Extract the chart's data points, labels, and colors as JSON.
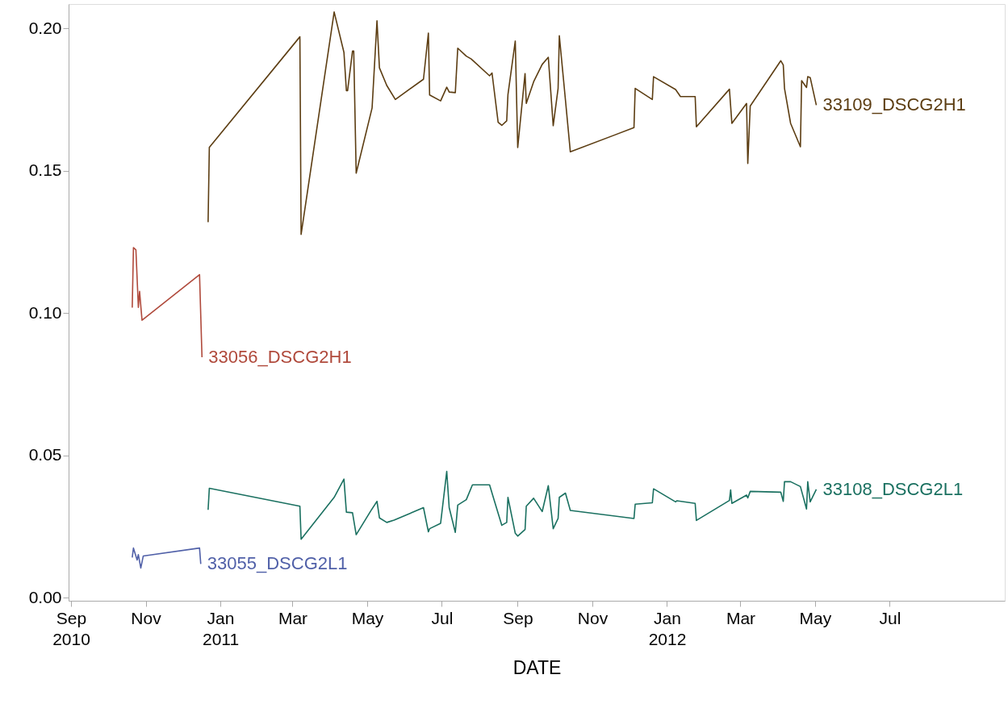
{
  "chart_data": {
    "type": "line",
    "xlabel": "DATE",
    "xlim": [
      "2010-08-30",
      "2012-10-03"
    ],
    "ylim": [
      -0.001,
      0.2085
    ],
    "xticks": [
      {
        "value": "2010-09-01",
        "label": "Sep 2010"
      },
      {
        "value": "2010-11-01",
        "label": "Nov"
      },
      {
        "value": "2011-01-01",
        "label": "Jan 2011"
      },
      {
        "value": "2011-03-01",
        "label": "Mar"
      },
      {
        "value": "2011-05-01",
        "label": "May"
      },
      {
        "value": "2011-07-01",
        "label": "Jul"
      },
      {
        "value": "2011-09-01",
        "label": "Sep"
      },
      {
        "value": "2011-11-01",
        "label": "Nov"
      },
      {
        "value": "2012-01-01",
        "label": "Jan 2012"
      },
      {
        "value": "2012-03-01",
        "label": "Mar"
      },
      {
        "value": "2012-05-01",
        "label": "May"
      },
      {
        "value": "2012-07-01",
        "label": "Jul"
      }
    ],
    "yticks": [
      {
        "value": 0,
        "label": "0.00"
      },
      {
        "value": 0.05,
        "label": "0.05"
      },
      {
        "value": 0.1,
        "label": "0.10"
      },
      {
        "value": 0.15,
        "label": "0.15"
      },
      {
        "value": 0.2,
        "label": "0.20"
      }
    ],
    "grid": false,
    "marker": "none",
    "line_style": "solid",
    "series": [
      {
        "name": "33056_DSCG2H1",
        "color": "#b04a3c",
        "x": [
          "2010-10-21",
          "2010-10-22",
          "2010-10-24",
          "2010-10-26",
          "2010-10-27",
          "2010-10-29",
          "2010-12-15",
          "2010-12-17"
        ],
        "values": [
          0.1019,
          0.123,
          0.1222,
          0.102,
          0.1076,
          0.0975,
          0.1135,
          0.0845
        ]
      },
      {
        "name": "33055_DSCG2L1",
        "color": "#5060a8",
        "x": [
          "2010-10-21",
          "2010-10-22",
          "2010-10-25",
          "2010-10-26",
          "2010-10-28",
          "2010-10-30",
          "2010-12-15",
          "2010-12-16"
        ],
        "values": [
          0.0142,
          0.0175,
          0.0133,
          0.0152,
          0.0105,
          0.0147,
          0.0175,
          0.0119
        ]
      },
      {
        "name": "33109_DSCG2H1",
        "color": "#5c3d12",
        "x": [
          "2010-12-22",
          "2010-12-23",
          "2011-03-07",
          "2011-03-08",
          "2011-04-04",
          "2011-04-12",
          "2011-04-14",
          "2011-04-15",
          "2011-04-19",
          "2011-04-20",
          "2011-04-22",
          "2011-05-05",
          "2011-05-09",
          "2011-05-11",
          "2011-05-17",
          "2011-05-24",
          "2011-06-16",
          "2011-06-20",
          "2011-06-21",
          "2011-06-30",
          "2011-07-05",
          "2011-07-07",
          "2011-07-12",
          "2011-07-14",
          "2011-07-21",
          "2011-07-25",
          "2011-08-09",
          "2011-08-11",
          "2011-08-16",
          "2011-08-19",
          "2011-08-23",
          "2011-08-24",
          "2011-08-30",
          "2011-09-01",
          "2011-09-07",
          "2011-09-08",
          "2011-09-14",
          "2011-09-21",
          "2011-09-26",
          "2011-09-30",
          "2011-10-04",
          "2011-10-05",
          "2011-10-10",
          "2011-10-14",
          "2011-12-05",
          "2011-12-06",
          "2011-12-20",
          "2011-12-21",
          "2012-01-08",
          "2012-01-12",
          "2012-01-24",
          "2012-01-25",
          "2012-02-21",
          "2012-02-23",
          "2012-03-06",
          "2012-03-07",
          "2012-03-09",
          "2012-04-03",
          "2012-04-05",
          "2012-04-06",
          "2012-04-11",
          "2012-04-19",
          "2012-04-20",
          "2012-04-24",
          "2012-04-25",
          "2012-04-27",
          "2012-05-02"
        ],
        "values": [
          0.1319,
          0.1582,
          0.197,
          0.1276,
          0.2057,
          0.1915,
          0.1781,
          0.1781,
          0.192,
          0.192,
          0.1491,
          0.172,
          0.2026,
          0.1861,
          0.1799,
          0.175,
          0.1821,
          0.1983,
          0.1766,
          0.1745,
          0.1793,
          0.1776,
          0.1774,
          0.193,
          0.1902,
          0.1892,
          0.1833,
          0.1843,
          0.167,
          0.1659,
          0.1675,
          0.1766,
          0.1955,
          0.1581,
          0.1841,
          0.1736,
          0.1812,
          0.1873,
          0.1898,
          0.1658,
          0.1789,
          0.1974,
          0.1748,
          0.1566,
          0.1651,
          0.1789,
          0.175,
          0.183,
          0.1785,
          0.176,
          0.176,
          0.1654,
          0.1786,
          0.1666,
          0.1736,
          0.1525,
          0.1727,
          0.1886,
          0.1871,
          0.1789,
          0.1666,
          0.1584,
          0.1816,
          0.1792,
          0.183,
          0.1827,
          0.173
        ]
      },
      {
        "name": "33108_DSCG2L1",
        "color": "#1a7060",
        "x": [
          "2010-12-22",
          "2010-12-23",
          "2011-03-07",
          "2011-03-08",
          "2011-04-04",
          "2011-04-12",
          "2011-04-14",
          "2011-04-19",
          "2011-04-22",
          "2011-05-04",
          "2011-05-09",
          "2011-05-11",
          "2011-05-17",
          "2011-05-23",
          "2011-06-16",
          "2011-06-20",
          "2011-06-21",
          "2011-06-30",
          "2011-07-05",
          "2011-07-07",
          "2011-07-12",
          "2011-07-14",
          "2011-07-21",
          "2011-07-26",
          "2011-08-09",
          "2011-08-12",
          "2011-08-19",
          "2011-08-23",
          "2011-08-24",
          "2011-08-30",
          "2011-09-01",
          "2011-09-07",
          "2011-09-08",
          "2011-09-14",
          "2011-09-21",
          "2011-09-26",
          "2011-09-30",
          "2011-10-04",
          "2011-10-05",
          "2011-10-10",
          "2011-10-14",
          "2011-12-05",
          "2011-12-06",
          "2011-12-20",
          "2011-12-21",
          "2012-01-08",
          "2012-01-09",
          "2012-01-24",
          "2012-01-25",
          "2012-02-21",
          "2012-02-22",
          "2012-02-23",
          "2012-03-06",
          "2012-03-07",
          "2012-03-09",
          "2012-04-03",
          "2012-04-05",
          "2012-04-06",
          "2012-04-11",
          "2012-04-19",
          "2012-04-24",
          "2012-04-25",
          "2012-04-27",
          "2012-05-02"
        ],
        "values": [
          0.0309,
          0.0385,
          0.0322,
          0.0206,
          0.0353,
          0.0417,
          0.0301,
          0.0299,
          0.0222,
          0.0306,
          0.0339,
          0.0281,
          0.0265,
          0.0273,
          0.0317,
          0.0232,
          0.0243,
          0.0262,
          0.0444,
          0.0317,
          0.023,
          0.0326,
          0.0345,
          0.0397,
          0.0397,
          0.0354,
          0.0255,
          0.0265,
          0.0353,
          0.0227,
          0.0217,
          0.024,
          0.0322,
          0.035,
          0.0303,
          0.0394,
          0.0243,
          0.0279,
          0.0353,
          0.0368,
          0.0307,
          0.0279,
          0.0329,
          0.0334,
          0.0383,
          0.0337,
          0.0341,
          0.0332,
          0.0272,
          0.0342,
          0.0379,
          0.0332,
          0.0361,
          0.0351,
          0.0374,
          0.0371,
          0.0339,
          0.0408,
          0.0408,
          0.0391,
          0.0312,
          0.0408,
          0.0337,
          0.0381
        ]
      }
    ]
  }
}
